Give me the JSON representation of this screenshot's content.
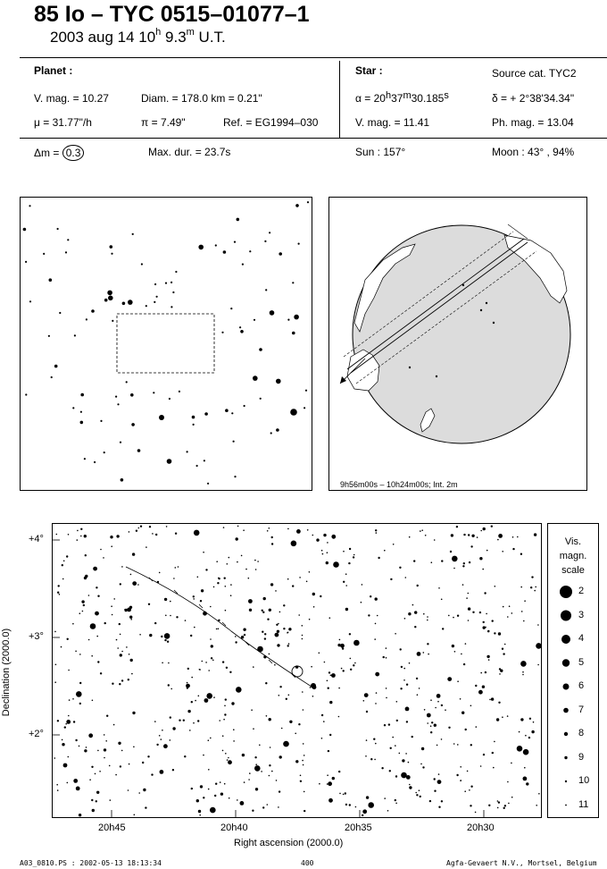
{
  "header": {
    "title": "85 Io  –  TYC 0515–01077–1",
    "date_main": "2003 aug 14  10",
    "date_h": "h",
    "date_min": " 9.3",
    "date_m": "m",
    "date_ut": " U.T."
  },
  "planet": {
    "heading": "Planet :",
    "vmag": "V. mag. = 10.27",
    "diam": "Diam. = 178.0 km = 0.21\"",
    "mu": "μ =  31.77\"/h",
    "pi": "π =  7.49\"",
    "ref": "Ref. = EG1994–030"
  },
  "star": {
    "heading": "Star :",
    "source": "Source cat.  TYC2",
    "alpha_pre": "α = 20",
    "alpha_h": "h",
    "alpha_mid": "37",
    "alpha_m": "m",
    "alpha_sec": "30.185",
    "alpha_s": "s",
    "delta": "δ = + 2°38'34.34\"",
    "vmag": "V. mag. = 11.41",
    "phmag": "Ph. mag. = 13.04"
  },
  "event": {
    "dm_label": "Δm = ",
    "dm_value": "0.3",
    "maxdur": "Max. dur. = 23.7s",
    "sun": "Sun : 157°",
    "moon": "Moon :  43° , 94%"
  },
  "globe": {
    "caption": "9h56m00s – 10h24m00s; Int.  2m",
    "land_color": "#ffffff",
    "sea_color": "#dcdcdc"
  },
  "chart": {
    "ylabel": "Declination (2000.0)",
    "xlabel": "Right ascension (2000.0)",
    "x_ticks": [
      "20h45",
      "20h40",
      "20h35",
      "20h30"
    ],
    "y_ticks": [
      "+4°",
      "+3°",
      "+2°"
    ]
  },
  "scale": {
    "title_1": "Vis.",
    "title_2": "magn.",
    "title_3": "scale",
    "items": [
      "2",
      "3",
      "4",
      "5",
      "6",
      "7",
      "8",
      "9",
      "10",
      "11"
    ]
  },
  "footer": {
    "left": "A03_0810.PS : 2002-05-13 18:13:34",
    "mid": "400",
    "right": "Agfa-Gevaert N.V., Mortsel, Belgium"
  }
}
